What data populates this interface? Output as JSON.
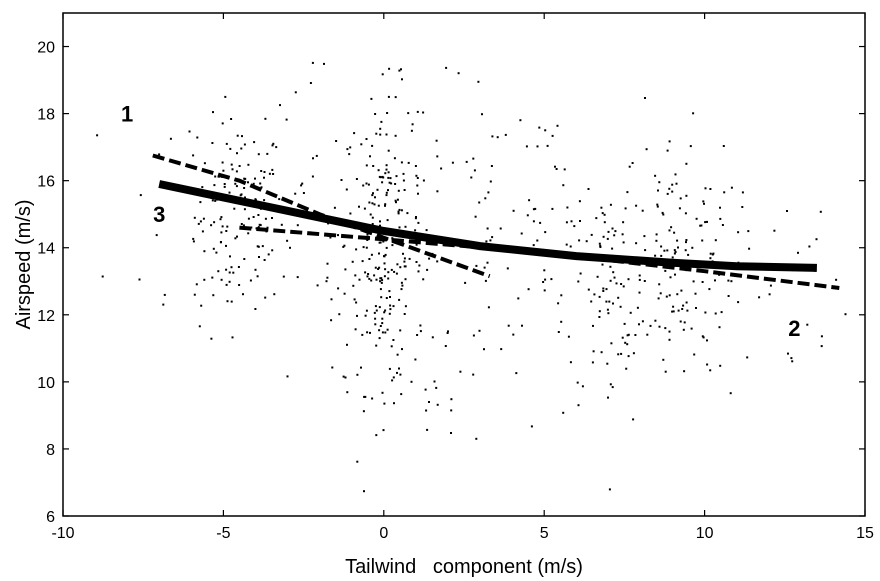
{
  "chart_data": {
    "type": "scatter",
    "title": "",
    "xlabel": "Tailwind   component (m/s)",
    "ylabel": "Airspeed (m/s)",
    "xlim": [
      -10,
      15
    ],
    "ylim": [
      6,
      21
    ],
    "x_ticks": [
      -10,
      -5,
      0,
      5,
      10,
      15
    ],
    "y_ticks": [
      6,
      8,
      10,
      12,
      14,
      16,
      18,
      20
    ],
    "x_tick_labels": [
      "-10",
      "-5",
      "0",
      "5",
      "10",
      "15"
    ],
    "y_tick_labels": [
      "6",
      "8",
      "10",
      "12",
      "14",
      "16",
      "18",
      "20"
    ],
    "grid": false,
    "annotations": [
      {
        "text": "1",
        "x": -8.0,
        "y": 18.0
      },
      {
        "text": "3",
        "x": -7.0,
        "y": 15.0
      },
      {
        "text": "2",
        "x": 12.8,
        "y": 11.6
      }
    ],
    "scatter_clusters": [
      {
        "x_center": -4.5,
        "x_spread": 0.7,
        "y_mean": 15.0,
        "y_sd": 1.4,
        "count": 120
      },
      {
        "x_center": -5.5,
        "x_spread": 1.5,
        "y_mean": 15.0,
        "y_sd": 2.2,
        "count": 40
      },
      {
        "x_center": 0.0,
        "x_spread": 0.6,
        "y_mean": 14.2,
        "y_sd": 2.2,
        "count": 210
      },
      {
        "x_center": -1.5,
        "x_spread": 1.6,
        "y_mean": 14.0,
        "y_sd": 2.6,
        "count": 60
      },
      {
        "x_center": 1.5,
        "x_spread": 1.4,
        "y_mean": 13.0,
        "y_sd": 2.6,
        "count": 70
      },
      {
        "x_center": 4.5,
        "x_spread": 1.8,
        "y_mean": 14.0,
        "y_sd": 2.2,
        "count": 90
      },
      {
        "x_center": 7.2,
        "x_spread": 0.8,
        "y_mean": 12.5,
        "y_sd": 2.0,
        "count": 70
      },
      {
        "x_center": 9.0,
        "x_spread": 1.0,
        "y_mean": 13.8,
        "y_sd": 1.8,
        "count": 130
      },
      {
        "x_center": 11.5,
        "x_spread": 1.5,
        "y_mean": 13.0,
        "y_sd": 1.5,
        "count": 40
      }
    ],
    "series": [
      {
        "style": "dashed",
        "width": 4,
        "points": [
          [
            -7.2,
            16.75
          ],
          [
            -4.5,
            16.0
          ],
          [
            -2.0,
            15.0
          ],
          [
            0.0,
            14.3
          ],
          [
            3.3,
            13.15
          ]
        ]
      },
      {
        "style": "dashed",
        "width": 4,
        "points": [
          [
            -4.5,
            14.6
          ],
          [
            0.0,
            14.25
          ],
          [
            5.0,
            13.85
          ],
          [
            10.0,
            13.3
          ],
          [
            14.2,
            12.8
          ]
        ]
      },
      {
        "style": "solid",
        "width": 8,
        "points": [
          [
            -7.0,
            15.9
          ],
          [
            -5.0,
            15.5
          ],
          [
            -2.0,
            14.9
          ],
          [
            0.0,
            14.5
          ],
          [
            3.0,
            14.05
          ],
          [
            6.0,
            13.75
          ],
          [
            9.0,
            13.55
          ],
          [
            11.0,
            13.45
          ],
          [
            13.5,
            13.4
          ]
        ]
      }
    ]
  }
}
